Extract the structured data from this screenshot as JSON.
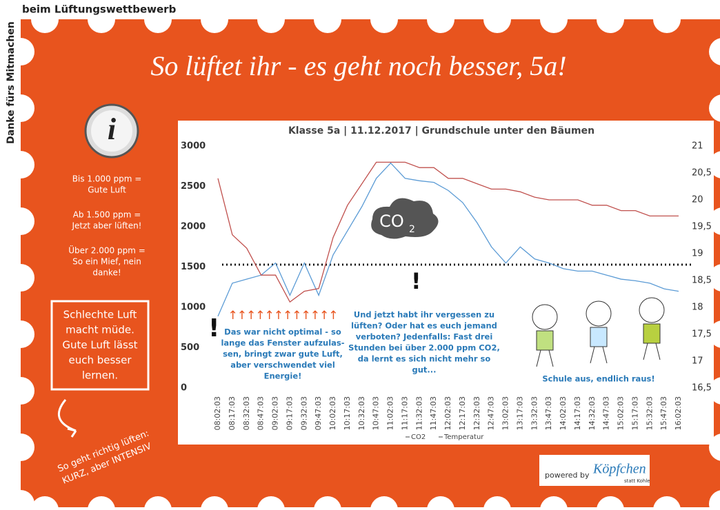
{
  "header": {
    "side_text": "Danke fürs Mitmachen",
    "top_text": "beim Lüftungswettbewerb",
    "title": "So lüftet ihr - es geht noch besser, 5a!"
  },
  "info": {
    "icon": "i",
    "blocks": [
      [
        "Bis 1.000 ppm =",
        "Gute Luft"
      ],
      [
        "Ab 1.500 ppm =",
        "Jetzt aber lüften!"
      ],
      [
        "Über  2.000 ppm =",
        "So ein Mief, nein",
        "danke!"
      ]
    ]
  },
  "box": [
    "Schlechte Luft",
    "macht müde.",
    "Gute Luft lässt",
    "euch besser",
    "lernen."
  ],
  "tip": [
    "So geht richtig lüften:",
    "KURZ, aber INTENSIV"
  ],
  "footer": {
    "powered": "powered by",
    "brand": "Köpfchen",
    "brand_sub": "statt Kohle"
  },
  "chart_data": {
    "type": "line",
    "title": "Klasse 5a | 11.12.2017 | Grundschule unter den Bäumen",
    "categories": [
      "08:02:03",
      "08:17:03",
      "08:32:03",
      "08:47:03",
      "09:02:03",
      "09:17:03",
      "09:32:03",
      "09:47:03",
      "10:02:03",
      "10:17:03",
      "10:32:03",
      "10:47:03",
      "11:02:03",
      "11:17:03",
      "11:32:03",
      "11:47:03",
      "12:02:03",
      "12:17:03",
      "12:32:03",
      "12:47:03",
      "13:02:03",
      "13:17:03",
      "13:32:03",
      "13:47:03",
      "14:02:03",
      "14:17:03",
      "14:32:03",
      "14:47:03",
      "15:02:03",
      "15:17:03",
      "15:32:03",
      "15:47:03",
      "16:02:03"
    ],
    "series": [
      {
        "name": "CO2",
        "color": "#5b9bd5",
        "values": [
          890,
          1300,
          1350,
          1400,
          1550,
          1150,
          1550,
          1150,
          1650,
          1950,
          2250,
          2600,
          2790,
          2600,
          2570,
          2550,
          2450,
          2300,
          2050,
          1750,
          1550,
          1750,
          1600,
          1550,
          1480,
          1450,
          1450,
          1400,
          1350,
          1330,
          1300,
          1230,
          1200
        ]
      },
      {
        "name": "Temperatur",
        "color": "#c0504d",
        "axis": "y2",
        "values": [
          20.4,
          19.35,
          19.1,
          18.6,
          18.6,
          18.1,
          18.3,
          18.35,
          19.3,
          19.9,
          20.3,
          20.7,
          20.7,
          20.7,
          20.6,
          20.6,
          20.4,
          20.4,
          20.3,
          20.2,
          20.2,
          20.15,
          20.05,
          20,
          20,
          20,
          19.9,
          19.9,
          19.8,
          19.8,
          19.7,
          19.7,
          19.7
        ]
      }
    ],
    "ylim": [
      0,
      3000
    ],
    "yticks": [
      0,
      500,
      1000,
      1500,
      2000,
      2500,
      3000
    ],
    "y2lim": [
      16.5,
      21
    ],
    "y2ticks": [
      {
        "value": 16.5,
        "label": "16,5"
      },
      17,
      {
        "value": 17.5,
        "label": "17,5"
      },
      18,
      {
        "value": 18.5,
        "label": "18,5"
      },
      19,
      {
        "value": 19.5,
        "label": "19,5"
      },
      20,
      {
        "value": 20.5,
        "label": "20,5"
      },
      21
    ],
    "reference_line": 1530,
    "cloud": {
      "text": "CO",
      "sub": "2"
    },
    "arrows": "↑↑↑↑↑↑↑↑↑↑↑↑",
    "exclamations": [
      "!",
      "!"
    ],
    "annotations": [
      [
        "Das war nicht optimal - so",
        "lange das Fenster aufzulas-",
        "sen, bringt zwar gute Luft,",
        "aber verschwendet viel",
        "Energie!"
      ],
      [
        "Und jetzt habt ihr vergessen zu",
        "lüften? Oder hat es euch jemand",
        "verboten? Jedenfalls: Fast drei",
        "Stunden bei über 2.000 ppm CO2,",
        "da lernt es sich nicht mehr so",
        "gut..."
      ],
      [
        "Schule aus, endlich raus!"
      ]
    ]
  }
}
